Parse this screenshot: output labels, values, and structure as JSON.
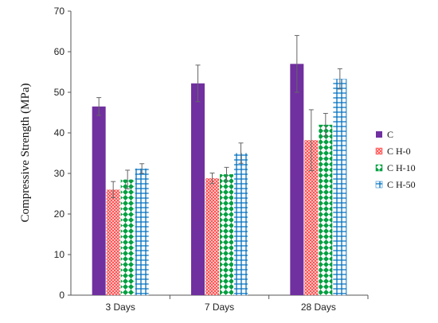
{
  "chart_data": {
    "type": "bar",
    "title": "",
    "xlabel": "",
    "ylabel": "Compressive Strength (MPa)",
    "ylim": [
      0,
      70
    ],
    "yticks": [
      0,
      10,
      20,
      30,
      40,
      50,
      60,
      70
    ],
    "grid": false,
    "legend_position": "right",
    "categories": [
      "3 Days",
      "7 Days",
      "28 Days"
    ],
    "series": [
      {
        "name": "C",
        "values": [
          46.5,
          52.2,
          57.0
        ],
        "errors": [
          2.2,
          4.5,
          7.0
        ],
        "color": "#7030A0",
        "pattern": "solid"
      },
      {
        "name": "C H-0",
        "values": [
          26.0,
          28.8,
          38.2
        ],
        "errors": [
          2.0,
          1.3,
          7.5
        ],
        "color": "#FF5050",
        "pattern": "crosshatch"
      },
      {
        "name": "C H-10",
        "values": [
          28.5,
          29.8,
          42.0
        ],
        "errors": [
          2.3,
          1.7,
          2.8
        ],
        "color": "#00A040",
        "pattern": "diamonds"
      },
      {
        "name": "C H-50",
        "values": [
          31.2,
          35.0,
          53.3
        ],
        "errors": [
          1.2,
          2.5,
          2.5
        ],
        "color": "#0070C0",
        "pattern": "grid"
      }
    ]
  }
}
